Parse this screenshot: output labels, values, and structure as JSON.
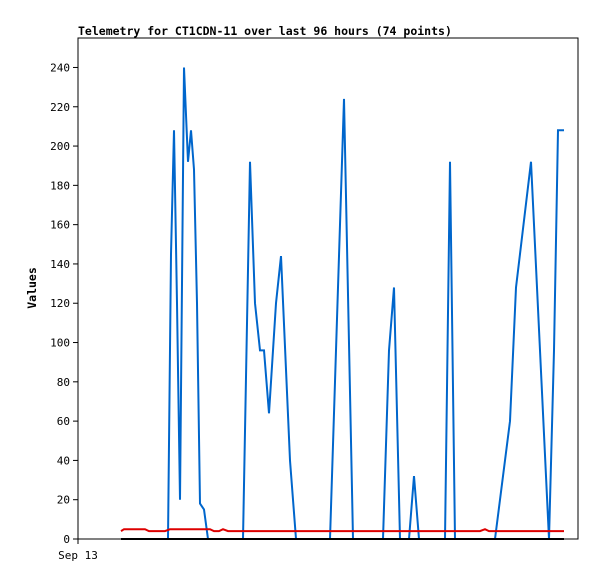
{
  "chart_data": {
    "type": "line",
    "title": "Telemetry for CT1CDN-11 over last 96 hours (74 points)",
    "xlabel": "",
    "ylabel": "Values",
    "x_tick_labels": [
      "Sep 13"
    ],
    "ylim": [
      0,
      255
    ],
    "y_ticks": [
      0,
      20,
      40,
      60,
      80,
      100,
      120,
      140,
      160,
      180,
      200,
      220,
      240
    ],
    "grid": false,
    "legend": "none",
    "series": [
      {
        "color": "#0066cc",
        "points": [
          [
            121,
            0
          ],
          [
            168,
            0
          ],
          [
            171,
            145
          ],
          [
            174,
            208
          ],
          [
            177,
            120
          ],
          [
            180,
            20
          ],
          [
            184,
            240
          ],
          [
            188,
            192
          ],
          [
            191,
            208
          ],
          [
            194,
            188
          ],
          [
            197,
            120
          ],
          [
            200,
            18
          ],
          [
            204,
            15
          ],
          [
            208,
            0
          ],
          [
            243,
            0
          ],
          [
            250,
            192
          ],
          [
            255,
            120
          ],
          [
            260,
            96
          ],
          [
            264,
            96
          ],
          [
            269,
            64
          ],
          [
            276,
            120
          ],
          [
            281,
            144
          ],
          [
            290,
            40
          ],
          [
            296,
            0
          ],
          [
            330,
            0
          ],
          [
            344,
            224
          ],
          [
            353,
            0
          ],
          [
            383,
            0
          ],
          [
            389,
            96
          ],
          [
            394,
            128
          ],
          [
            400,
            0
          ],
          [
            409,
            0
          ],
          [
            414,
            32
          ],
          [
            419,
            0
          ],
          [
            445,
            0
          ],
          [
            450,
            192
          ],
          [
            455,
            0
          ],
          [
            495,
            0
          ],
          [
            510,
            60
          ],
          [
            516,
            128
          ],
          [
            531,
            192
          ],
          [
            549,
            0
          ],
          [
            554,
            96
          ],
          [
            558,
            208
          ],
          [
            564,
            208
          ]
        ]
      },
      {
        "color": "#dd0000",
        "points": [
          [
            121,
            4
          ],
          [
            124,
            5
          ],
          [
            145,
            5
          ],
          [
            149,
            4
          ],
          [
            165,
            4
          ],
          [
            170,
            5
          ],
          [
            210,
            5
          ],
          [
            214,
            4
          ],
          [
            219,
            4
          ],
          [
            223,
            5
          ],
          [
            228,
            4
          ],
          [
            480,
            4
          ],
          [
            485,
            5
          ],
          [
            489,
            4
          ],
          [
            564,
            4
          ]
        ]
      },
      {
        "color": "#000000",
        "points": [
          [
            121,
            0
          ],
          [
            564,
            0
          ]
        ]
      }
    ]
  }
}
